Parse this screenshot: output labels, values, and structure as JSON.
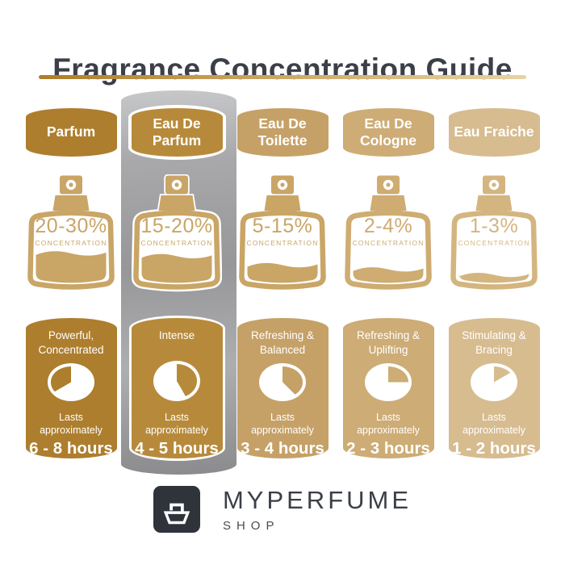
{
  "header": {
    "title": "Fragrance Concentration Guide"
  },
  "columns": [
    {
      "name": "Parfum",
      "highlighted": false,
      "accent_color": "#AD7E2D",
      "bottle_color": "#C9A566",
      "concentration": "20-30%",
      "concentration_label": "CONCENTRATION",
      "fill_percent": 42,
      "clock_wedge_deg": [
        240,
        360
      ],
      "description": "Powerful, Concentrated",
      "lasts_label": "Lasts approximately",
      "duration": "6 - 8 hours"
    },
    {
      "name": "Eau De Parfum",
      "highlighted": true,
      "accent_color": "#B78A3B",
      "bottle_color": "#C9A566",
      "concentration": "15-20%",
      "concentration_label": "CONCENTRATION",
      "fill_percent": 38,
      "clock_wedge_deg": [
        0,
        150
      ],
      "description": "Intense",
      "lasts_label": "Lasts approximately",
      "duration": "4 - 5 hours"
    },
    {
      "name": "Eau De Toilette",
      "highlighted": false,
      "accent_color": "#C5A167",
      "bottle_color": "#C9A566",
      "concentration": "5-15%",
      "concentration_label": "CONCENTRATION",
      "fill_percent": 25,
      "clock_wedge_deg": [
        0,
        135
      ],
      "description": "Refreshing & Balanced",
      "lasts_label": "Lasts approximately",
      "duration": "3 - 4 hours"
    },
    {
      "name": "Eau De Cologne",
      "highlighted": false,
      "accent_color": "#CDAC75",
      "bottle_color": "#CEAC72",
      "concentration": "2-4%",
      "concentration_label": "CONCENTRATION",
      "fill_percent": 19,
      "clock_wedge_deg": [
        0,
        90
      ],
      "description": "Refreshing & Uplifting",
      "lasts_label": "Lasts approximately",
      "duration": "2 - 3 hours"
    },
    {
      "name": "Eau Fraiche",
      "highlighted": false,
      "accent_color": "#D7BC90",
      "bottle_color": "#D4B580",
      "concentration": "1-3%",
      "concentration_label": "CONCENTRATION",
      "fill_percent": 11,
      "clock_wedge_deg": [
        0,
        60
      ],
      "description": "Stimulating & Bracing",
      "lasts_label": "Lasts approximately",
      "duration": "1 - 2 hours"
    }
  ],
  "footer": {
    "brand": "MYPERFUME",
    "brand_sub": "SHOP"
  },
  "colors": {
    "title": "#3B3F47",
    "underline_from": "#AF7D29",
    "underline_to": "#E9D3A2",
    "highlight_silver": "#97979A",
    "card_text": "#FFFFFF",
    "logo_box": "#2F333A"
  }
}
